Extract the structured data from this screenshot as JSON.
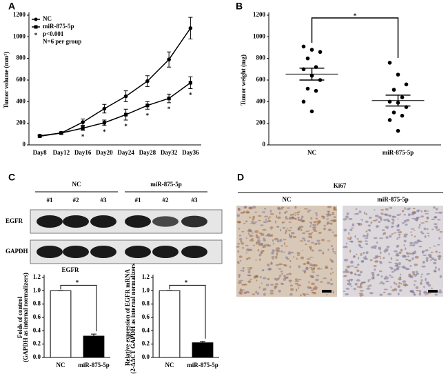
{
  "panel_labels": [
    "A",
    "B",
    "C",
    "D"
  ],
  "chart_data": [
    {
      "type": "line",
      "ylabel": [
        "Tumor volume (mm³)"
      ],
      "categories": [
        "Day8",
        "Day12",
        "Day16",
        "Day20",
        "Day24",
        "Day28",
        "Day32",
        "Day36"
      ],
      "series": [
        {
          "name": "NC",
          "color": "#000000",
          "marker": "circle",
          "values": [
            85,
            110,
            210,
            335,
            450,
            590,
            790,
            1080
          ],
          "errors": [
            10,
            10,
            30,
            40,
            50,
            50,
            70,
            100
          ]
        },
        {
          "name": "miR-875-5p",
          "color": "#000000",
          "marker": "square",
          "values": [
            80,
            110,
            155,
            205,
            280,
            365,
            430,
            575
          ],
          "errors": [
            8,
            10,
            20,
            25,
            50,
            35,
            40,
            55
          ]
        }
      ],
      "legend_notes": [
        {
          "symbol": "*",
          "text": "p<0.001"
        },
        {
          "text": "N=6 per group"
        }
      ],
      "annotations": [
        {
          "text": "*",
          "x": "Day16"
        },
        {
          "text": "*",
          "x": "Day20"
        },
        {
          "text": "*",
          "x": "Day24"
        },
        {
          "text": "*",
          "x": "Day28"
        },
        {
          "text": "*",
          "x": "Day32"
        },
        {
          "text": "*",
          "x": "Day36"
        }
      ],
      "ylim": [
        0,
        1200
      ],
      "yticks": [
        0,
        200,
        400,
        600,
        800,
        1000,
        1200
      ]
    },
    {
      "type": "dot",
      "ylabel": [
        "Tumor weight (mg)"
      ],
      "categories": [
        "NC",
        "miR-875-5p"
      ],
      "color": "#000000",
      "values": [
        [
          910,
          880,
          860,
          800,
          720,
          700,
          640,
          600,
          520,
          500,
          400,
          310
        ],
        [
          760,
          650,
          560,
          510,
          440,
          400,
          390,
          350,
          300,
          270,
          230,
          130
        ]
      ],
      "means": [
        655,
        410
      ],
      "errors": [
        55,
        50
      ],
      "annotation": "*",
      "ylim": [
        0,
        1200
      ],
      "yticks": [
        0,
        200,
        400,
        600,
        800,
        1000,
        1200
      ]
    },
    {
      "type": "bar",
      "title": "EGFR",
      "ylabel": [
        "Folds of control",
        "(GAPDH as internal normalizers)"
      ],
      "categories": [
        "NC",
        "miR-875-5p"
      ],
      "colors": [
        "#ffffff",
        "#000000"
      ],
      "values": [
        1.0,
        0.32
      ],
      "errors": [
        0,
        0.03
      ],
      "annotation": "*",
      "ylim": [
        0,
        1.2
      ],
      "yticks": [
        {
          "value": 0,
          "label": "0.0"
        },
        0.2,
        0.4,
        0.6,
        0.8,
        {
          "value": 1,
          "label": "1.0"
        },
        1.2
      ]
    },
    {
      "type": "bar",
      "ylabel": [
        "Relative expression of EGFR mRNA",
        "(2-ΔΔCT GAPDH as internal normalizers)"
      ],
      "categories": [
        "NC",
        "miR-875-5p"
      ],
      "colors": [
        "#ffffff",
        "#000000"
      ],
      "values": [
        1.0,
        0.22
      ],
      "errors": [
        0,
        0.02
      ],
      "annotation": "*",
      "ylim": [
        0,
        1.2
      ],
      "yticks": [
        {
          "value": 0,
          "label": "0.0"
        },
        0.2,
        0.4,
        0.6,
        0.8,
        {
          "value": 1,
          "label": "1.0"
        },
        1.2
      ]
    }
  ],
  "blot": {
    "groups": [
      "NC",
      "miR-875-5p"
    ],
    "lanes": [
      "#1",
      "#2",
      "#3",
      "#1",
      "#2",
      "#3"
    ],
    "proteins": [
      "EGFR",
      "GAPDH"
    ]
  },
  "ihc": {
    "title": "Ki67",
    "groups": [
      "NC",
      "miR-875-5p"
    ]
  }
}
